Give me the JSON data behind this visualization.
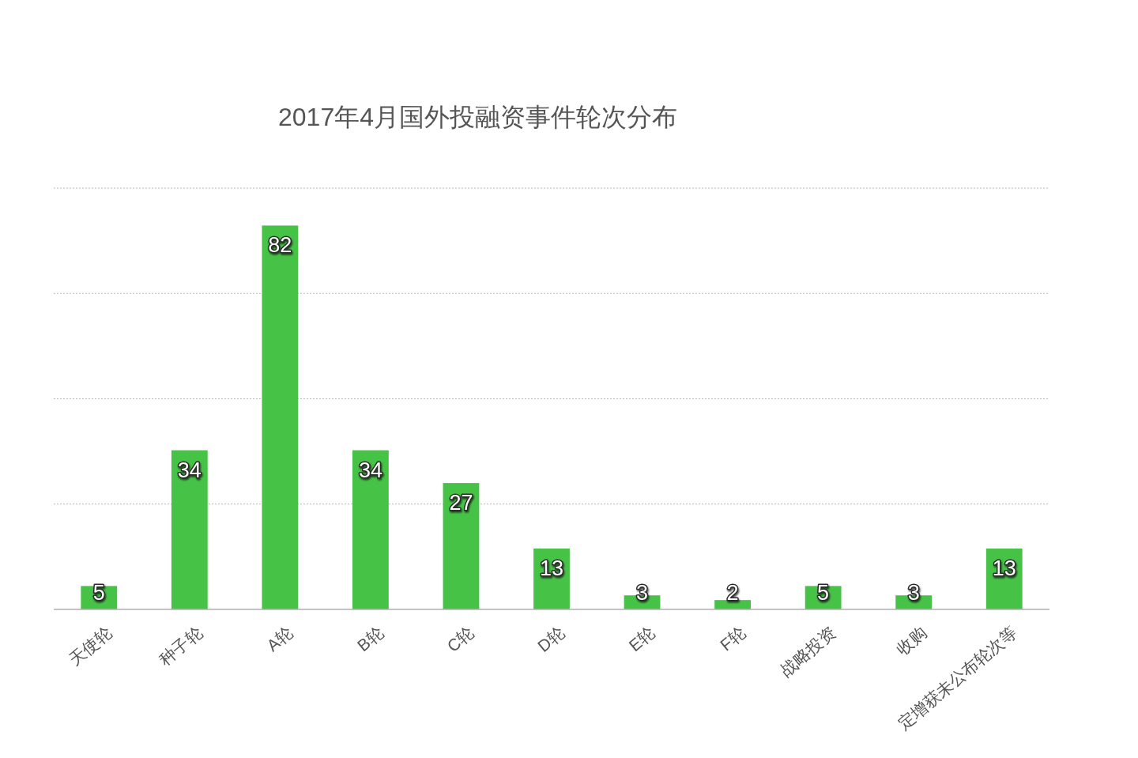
{
  "chart_data": {
    "type": "bar",
    "title": "2017年4月国外投融资事件轮次分布",
    "categories": [
      "天使轮",
      "种子轮",
      "A轮",
      "B轮",
      "C轮",
      "D轮",
      "E轮",
      "F轮",
      "战略投资",
      "收购",
      "定增获未公布轮次等"
    ],
    "values": [
      5,
      34,
      82,
      34,
      27,
      13,
      3,
      2,
      5,
      3,
      13
    ],
    "color": "#46c346",
    "ylim": [
      0,
      90
    ],
    "yticks": [
      {
        "value": 0,
        "label": null
      },
      {
        "value": 22.5,
        "label": null
      },
      {
        "value": 45,
        "label": null
      },
      {
        "value": 67.5,
        "label": null
      },
      {
        "value": 90,
        "label": null
      }
    ],
    "grid": "y",
    "tick_labels": "x",
    "data_labels": true
  }
}
